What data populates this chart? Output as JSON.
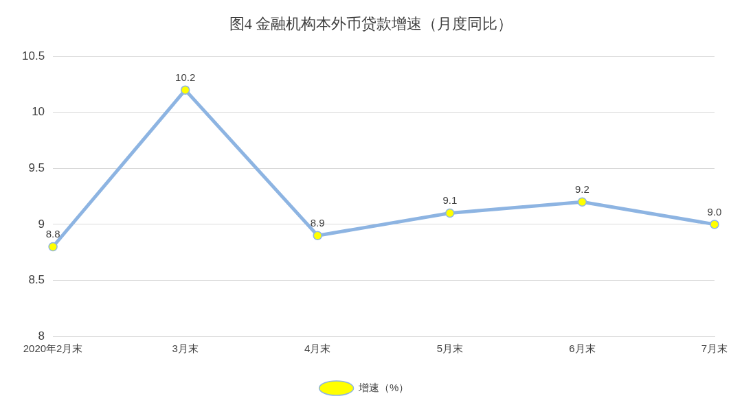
{
  "chart_data": {
    "type": "line",
    "title": "图4  金融机构本外币贷款增速（月度同比）",
    "categories": [
      "2020年2月末",
      "3月末",
      "4月末",
      "5月末",
      "6月末",
      "7月末"
    ],
    "series": [
      {
        "name": "增速（%）",
        "color": "#8db4e2",
        "values": [
          8.8,
          10.2,
          8.9,
          9.1,
          9.2,
          9.0
        ]
      }
    ],
    "value_labels": [
      "8.8",
      "10.2",
      "8.9",
      "9.1",
      "9.2",
      "9.0"
    ],
    "ylim": [
      8,
      10.5
    ],
    "yticks": [
      8,
      8.5,
      9,
      9.5,
      10,
      10.5
    ],
    "grid": "y",
    "legend": "bottom",
    "marker": "circle",
    "line_style": "solid"
  }
}
